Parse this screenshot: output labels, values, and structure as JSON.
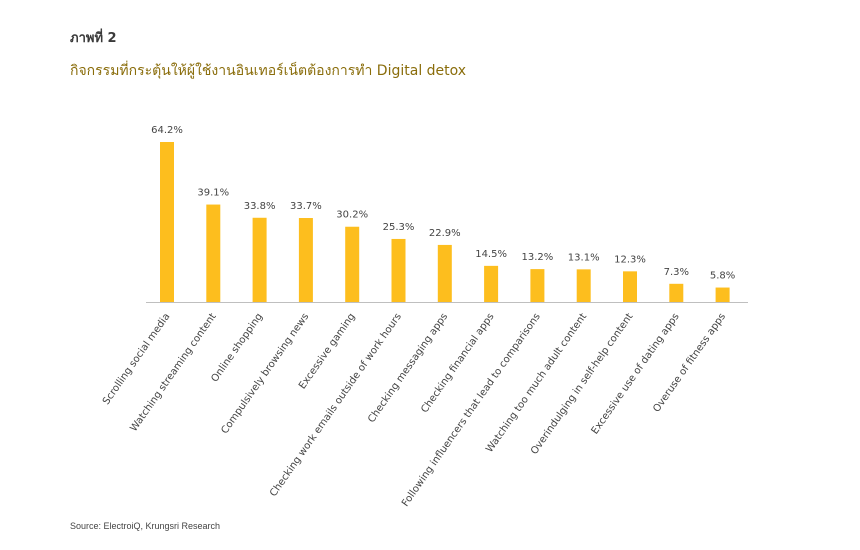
{
  "figure": {
    "label": "ภาพที่ 2",
    "title": "กิจกรรมที่กระตุ้นให้ผู้ใช้งานอินเทอร์เน็ตต้องการทำ Digital detox",
    "source": "Source: ElectroiQ, Krungsri Research"
  },
  "colors": {
    "bar": "#FDBE1E",
    "axis": "#bfbfbf",
    "title": "#8a6d0b"
  },
  "chart_data": {
    "type": "bar",
    "title": "กิจกรรมที่กระตุ้นให้ผู้ใช้งานอินเทอร์เน็ตต้องการทำ Digital detox",
    "xlabel": "",
    "ylabel": "",
    "ylim": [
      0,
      70
    ],
    "grid": false,
    "legend": "none",
    "categories": [
      "Scrolling social media",
      "Watching streaming content",
      "Online shopping",
      "Compulsively browsing news",
      "Excessive gaming",
      "Checking work emails outside of work hours",
      "Checking messaging apps",
      "Checking financial apps",
      "Following influencers that lead to comparisons",
      "Watching too much adult content",
      "Overindulging in self-help content",
      "Excessive use of dating apps",
      "Overuse of fitness apps"
    ],
    "values": [
      64.2,
      39.1,
      33.8,
      33.7,
      30.2,
      25.3,
      22.9,
      14.5,
      13.2,
      13.1,
      12.3,
      7.3,
      5.8
    ],
    "value_labels": [
      "64.2%",
      "39.1%",
      "33.8%",
      "33.7%",
      "30.2%",
      "25.3%",
      "22.9%",
      "14.5%",
      "13.2%",
      "13.1%",
      "12.3%",
      "7.3%",
      "5.8%"
    ]
  }
}
